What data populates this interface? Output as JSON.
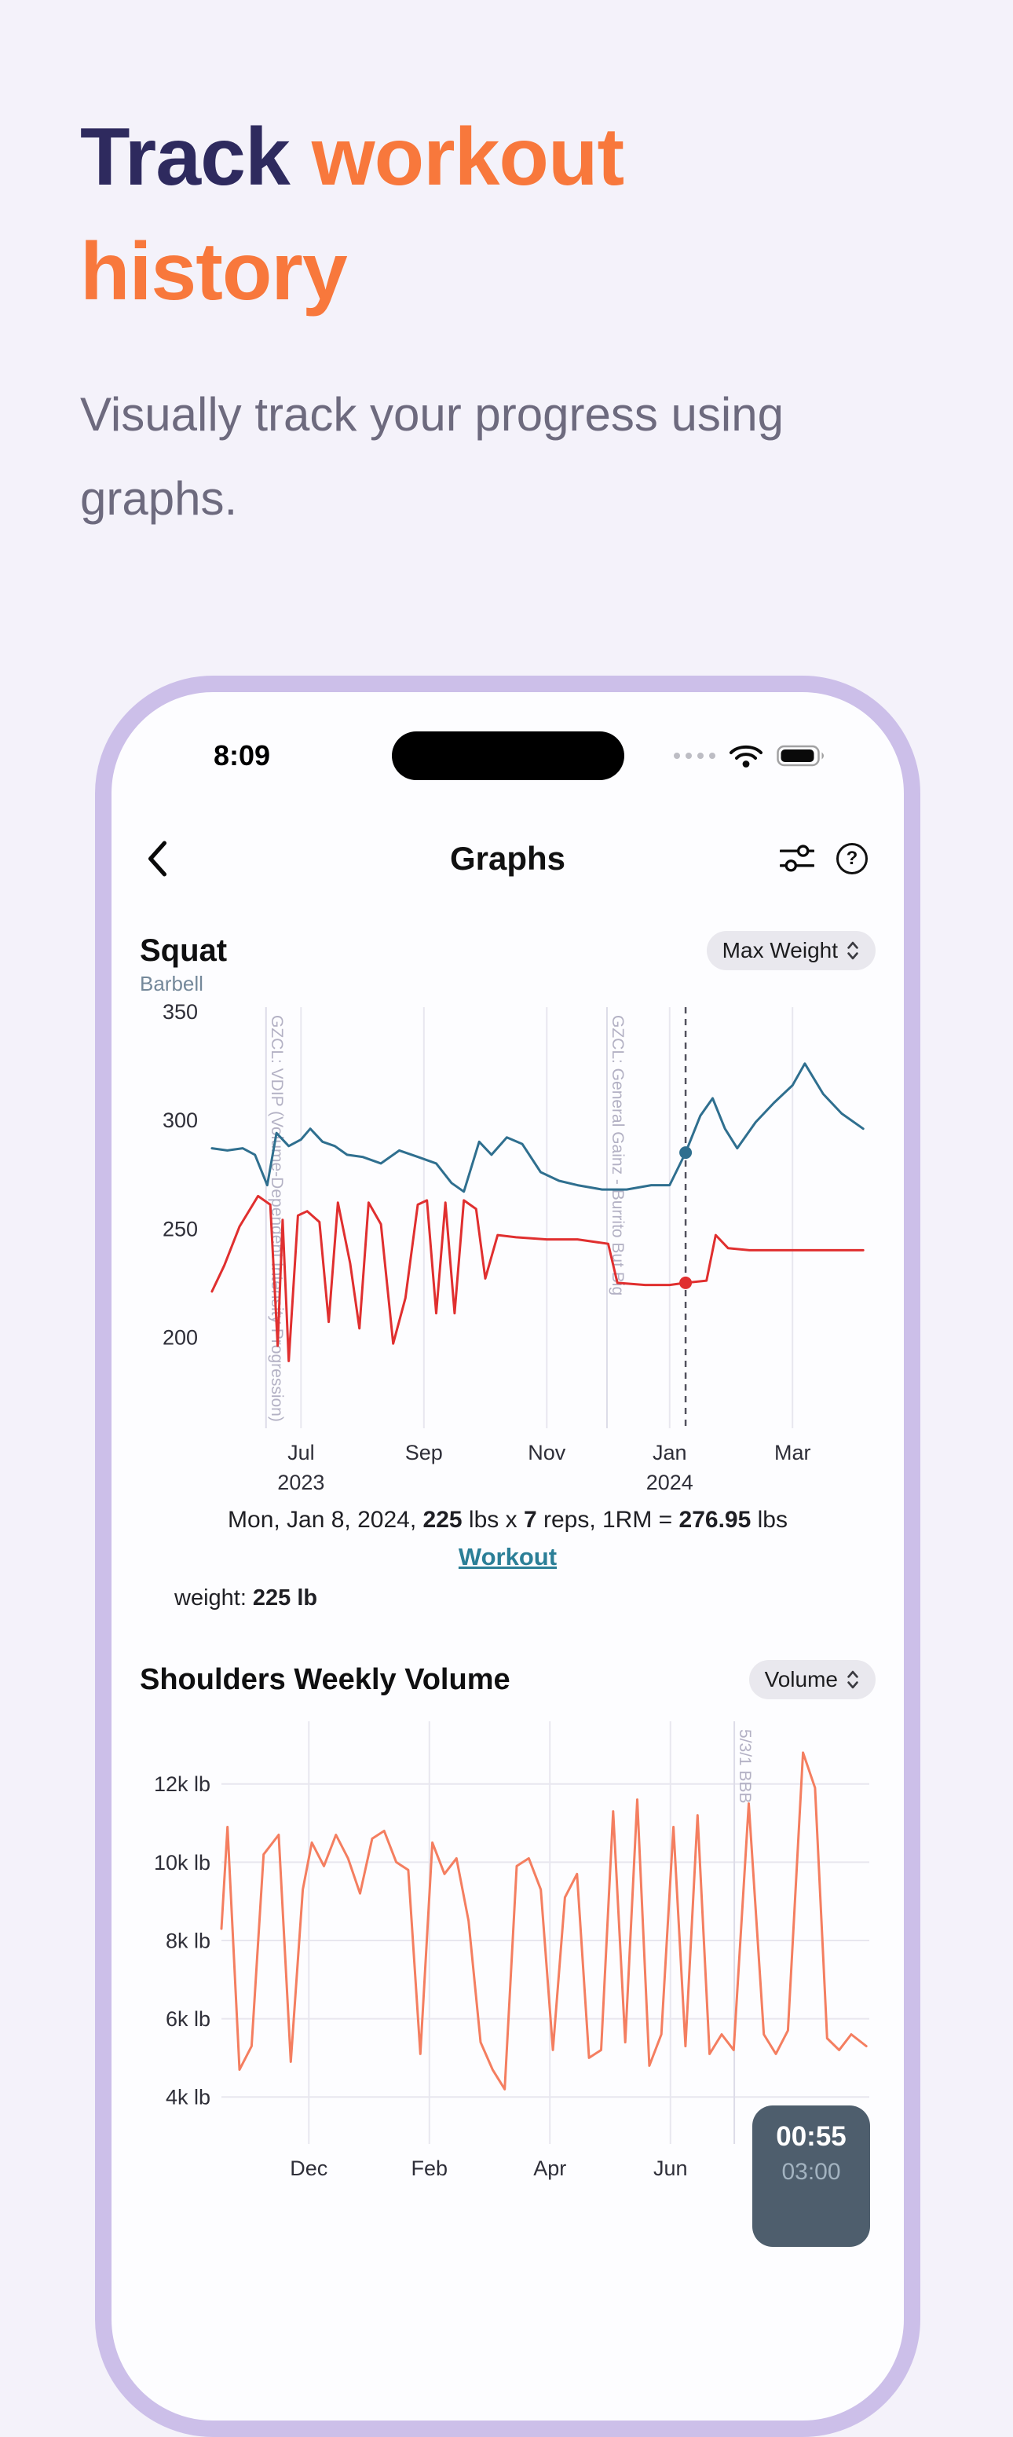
{
  "hero": {
    "title_part1": "Track ",
    "title_part2": "workout",
    "title_part3": "history",
    "subtitle": "Visually track your progress using graphs."
  },
  "colors": {
    "brand_navy": "#2e2a5e",
    "brand_orange": "#f8783c",
    "phone_frame": "#ccbfe9",
    "link_teal": "#2b7f97",
    "series_teal": "#2f6f8f",
    "series_red": "#e02f2f",
    "series_salmon": "#f47e60",
    "timer_bg": "#4e5e6d"
  },
  "phone": {
    "status": {
      "time": "8:09"
    },
    "nav": {
      "title": "Graphs",
      "help_glyph": "?"
    },
    "squat": {
      "title": "Squat",
      "subtitle": "Barbell",
      "metric_label": "Max Weight",
      "caption": {
        "p1": "Mon, Jan 8, 2024, ",
        "b1": "225",
        "p2": " lbs x ",
        "b2": "7",
        "p3": " reps, 1RM = ",
        "b3": "276.95",
        "p4": " lbs"
      },
      "link_label": "Workout",
      "weight_label": "weight:",
      "weight_value": "225 lb"
    },
    "shoulders": {
      "title": "Shoulders Weekly Volume",
      "metric_label": "Volume"
    },
    "timer": {
      "elapsed": "00:55",
      "total": "03:00"
    }
  },
  "chart_data": [
    {
      "type": "line",
      "title": "Squat",
      "subtitle": "Barbell",
      "metric": "Max Weight",
      "x_unit": "months, Jul 1 2023 = 1",
      "xlim": [
        -0.5,
        10.25
      ],
      "ylim": [
        158,
        352
      ],
      "grid": "vertical",
      "legend": "none",
      "xticks": [
        {
          "x": 1,
          "label": "Jul",
          "year": "2023"
        },
        {
          "x": 3,
          "label": "Sep"
        },
        {
          "x": 5,
          "label": "Nov"
        },
        {
          "x": 7,
          "label": "Jan",
          "year": "2024"
        },
        {
          "x": 9,
          "label": "Mar"
        }
      ],
      "yticks": [
        {
          "v": 200,
          "label": "200"
        },
        {
          "v": 250,
          "label": "250"
        },
        {
          "v": 300,
          "label": "300"
        },
        {
          "v": 350,
          "label": "350"
        }
      ],
      "series": [
        {
          "name": "Max Weight",
          "color": "#2f6f8f",
          "points": [
            [
              -0.45,
              287
            ],
            [
              -0.2,
              286
            ],
            [
              0.05,
              287
            ],
            [
              0.25,
              284
            ],
            [
              0.45,
              270
            ],
            [
              0.6,
              294
            ],
            [
              0.8,
              288
            ],
            [
              1.0,
              291
            ],
            [
              1.15,
              296
            ],
            [
              1.35,
              290
            ],
            [
              1.55,
              288
            ],
            [
              1.75,
              284
            ],
            [
              2.0,
              283
            ],
            [
              2.3,
              280
            ],
            [
              2.6,
              286
            ],
            [
              2.9,
              283
            ],
            [
              3.2,
              280
            ],
            [
              3.45,
              271
            ],
            [
              3.65,
              267
            ],
            [
              3.9,
              290
            ],
            [
              4.1,
              284
            ],
            [
              4.35,
              292
            ],
            [
              4.6,
              289
            ],
            [
              4.9,
              276
            ],
            [
              5.2,
              272
            ],
            [
              5.5,
              270
            ],
            [
              5.9,
              268
            ],
            [
              6.3,
              268
            ],
            [
              6.7,
              270
            ],
            [
              7.0,
              270
            ],
            [
              7.26,
              285
            ],
            [
              7.5,
              302
            ],
            [
              7.7,
              310
            ],
            [
              7.9,
              296
            ],
            [
              8.1,
              287
            ],
            [
              8.4,
              299
            ],
            [
              8.7,
              308
            ],
            [
              9.0,
              316
            ],
            [
              9.2,
              326
            ],
            [
              9.5,
              312
            ],
            [
              9.8,
              303
            ],
            [
              10.15,
              296
            ]
          ]
        },
        {
          "name": "Weight",
          "color": "#e02f2f",
          "points": [
            [
              -0.45,
              221
            ],
            [
              -0.25,
              233
            ],
            [
              0.0,
              251
            ],
            [
              0.3,
              265
            ],
            [
              0.5,
              261
            ],
            [
              0.62,
              196
            ],
            [
              0.7,
              254
            ],
            [
              0.8,
              189
            ],
            [
              0.95,
              256
            ],
            [
              1.1,
              258
            ],
            [
              1.3,
              253
            ],
            [
              1.45,
              207
            ],
            [
              1.6,
              262
            ],
            [
              1.8,
              234
            ],
            [
              1.95,
              204
            ],
            [
              2.1,
              262
            ],
            [
              2.3,
              252
            ],
            [
              2.5,
              197
            ],
            [
              2.7,
              218
            ],
            [
              2.9,
              261
            ],
            [
              3.05,
              263
            ],
            [
              3.2,
              211
            ],
            [
              3.35,
              262
            ],
            [
              3.5,
              211
            ],
            [
              3.65,
              263
            ],
            [
              3.85,
              259
            ],
            [
              4.0,
              227
            ],
            [
              4.2,
              247
            ],
            [
              4.5,
              246
            ],
            [
              5.0,
              245
            ],
            [
              5.5,
              245
            ],
            [
              6.0,
              243
            ],
            [
              6.15,
              225
            ],
            [
              6.6,
              224
            ],
            [
              7.0,
              224
            ],
            [
              7.26,
              225
            ],
            [
              7.6,
              226
            ],
            [
              7.75,
              247
            ],
            [
              7.95,
              241
            ],
            [
              8.3,
              240
            ],
            [
              8.8,
              240
            ],
            [
              9.3,
              240
            ],
            [
              9.8,
              240
            ],
            [
              10.15,
              240
            ]
          ]
        }
      ],
      "annotations": [
        {
          "x": 0.43,
          "label": "GZCL: VDIP (Volume-Dependent Intensity Progression)"
        },
        {
          "x": 5.98,
          "label": "GZCL: General Gainz - Burrito But Big"
        }
      ],
      "selection": {
        "x": 7.26,
        "label": "Mon, Jan 8, 2024",
        "points": [
          {
            "y": 285,
            "color": "#2f6f8f"
          },
          {
            "y": 225,
            "color": "#e02f2f"
          }
        ]
      }
    },
    {
      "type": "line",
      "title": "Shoulders Weekly Volume",
      "metric": "Volume",
      "x_unit": "months, Dec 1 2023 = 1",
      "xlim": [
        -0.45,
        10.3
      ],
      "ylim": [
        2800,
        13600
      ],
      "grid": "both",
      "legend": "none",
      "xticks": [
        {
          "x": 1,
          "label": "Dec"
        },
        {
          "x": 3,
          "label": "Feb"
        },
        {
          "x": 5,
          "label": "Apr"
        },
        {
          "x": 7,
          "label": "Jun"
        }
      ],
      "yticks": [
        {
          "v": 4000,
          "label": "4k lb"
        },
        {
          "v": 6000,
          "label": "6k lb"
        },
        {
          "v": 8000,
          "label": "8k lb"
        },
        {
          "v": 10000,
          "label": "10k lb"
        },
        {
          "v": 12000,
          "label": "12k lb"
        }
      ],
      "series": [
        {
          "name": "Volume",
          "color": "#f47e60",
          "points": [
            [
              -0.45,
              8300
            ],
            [
              -0.35,
              10900
            ],
            [
              -0.15,
              4700
            ],
            [
              0.05,
              5300
            ],
            [
              0.25,
              10200
            ],
            [
              0.5,
              10700
            ],
            [
              0.7,
              4900
            ],
            [
              0.9,
              9300
            ],
            [
              1.05,
              10500
            ],
            [
              1.25,
              9900
            ],
            [
              1.45,
              10700
            ],
            [
              1.65,
              10100
            ],
            [
              1.85,
              9200
            ],
            [
              2.05,
              10600
            ],
            [
              2.25,
              10800
            ],
            [
              2.45,
              10000
            ],
            [
              2.65,
              9800
            ],
            [
              2.85,
              5100
            ],
            [
              3.05,
              10500
            ],
            [
              3.25,
              9700
            ],
            [
              3.45,
              10100
            ],
            [
              3.65,
              8500
            ],
            [
              3.85,
              5400
            ],
            [
              4.05,
              4700
            ],
            [
              4.25,
              4200
            ],
            [
              4.45,
              9900
            ],
            [
              4.65,
              10100
            ],
            [
              4.85,
              9300
            ],
            [
              5.05,
              5200
            ],
            [
              5.25,
              9100
            ],
            [
              5.45,
              9700
            ],
            [
              5.65,
              5000
            ],
            [
              5.85,
              5200
            ],
            [
              6.05,
              11300
            ],
            [
              6.25,
              5400
            ],
            [
              6.45,
              11600
            ],
            [
              6.65,
              4800
            ],
            [
              6.85,
              5600
            ],
            [
              7.05,
              10900
            ],
            [
              7.25,
              5300
            ],
            [
              7.45,
              11200
            ],
            [
              7.65,
              5100
            ],
            [
              7.85,
              5600
            ],
            [
              8.05,
              5200
            ],
            [
              8.3,
              11500
            ],
            [
              8.55,
              5600
            ],
            [
              8.75,
              5100
            ],
            [
              8.95,
              5700
            ],
            [
              9.2,
              12800
            ],
            [
              9.4,
              11900
            ],
            [
              9.6,
              5500
            ],
            [
              9.8,
              5200
            ],
            [
              10.0,
              5600
            ],
            [
              10.25,
              5300
            ]
          ]
        }
      ],
      "annotations": [
        {
          "x": 8.06,
          "label": "5/3/1 BBB"
        }
      ]
    }
  ]
}
